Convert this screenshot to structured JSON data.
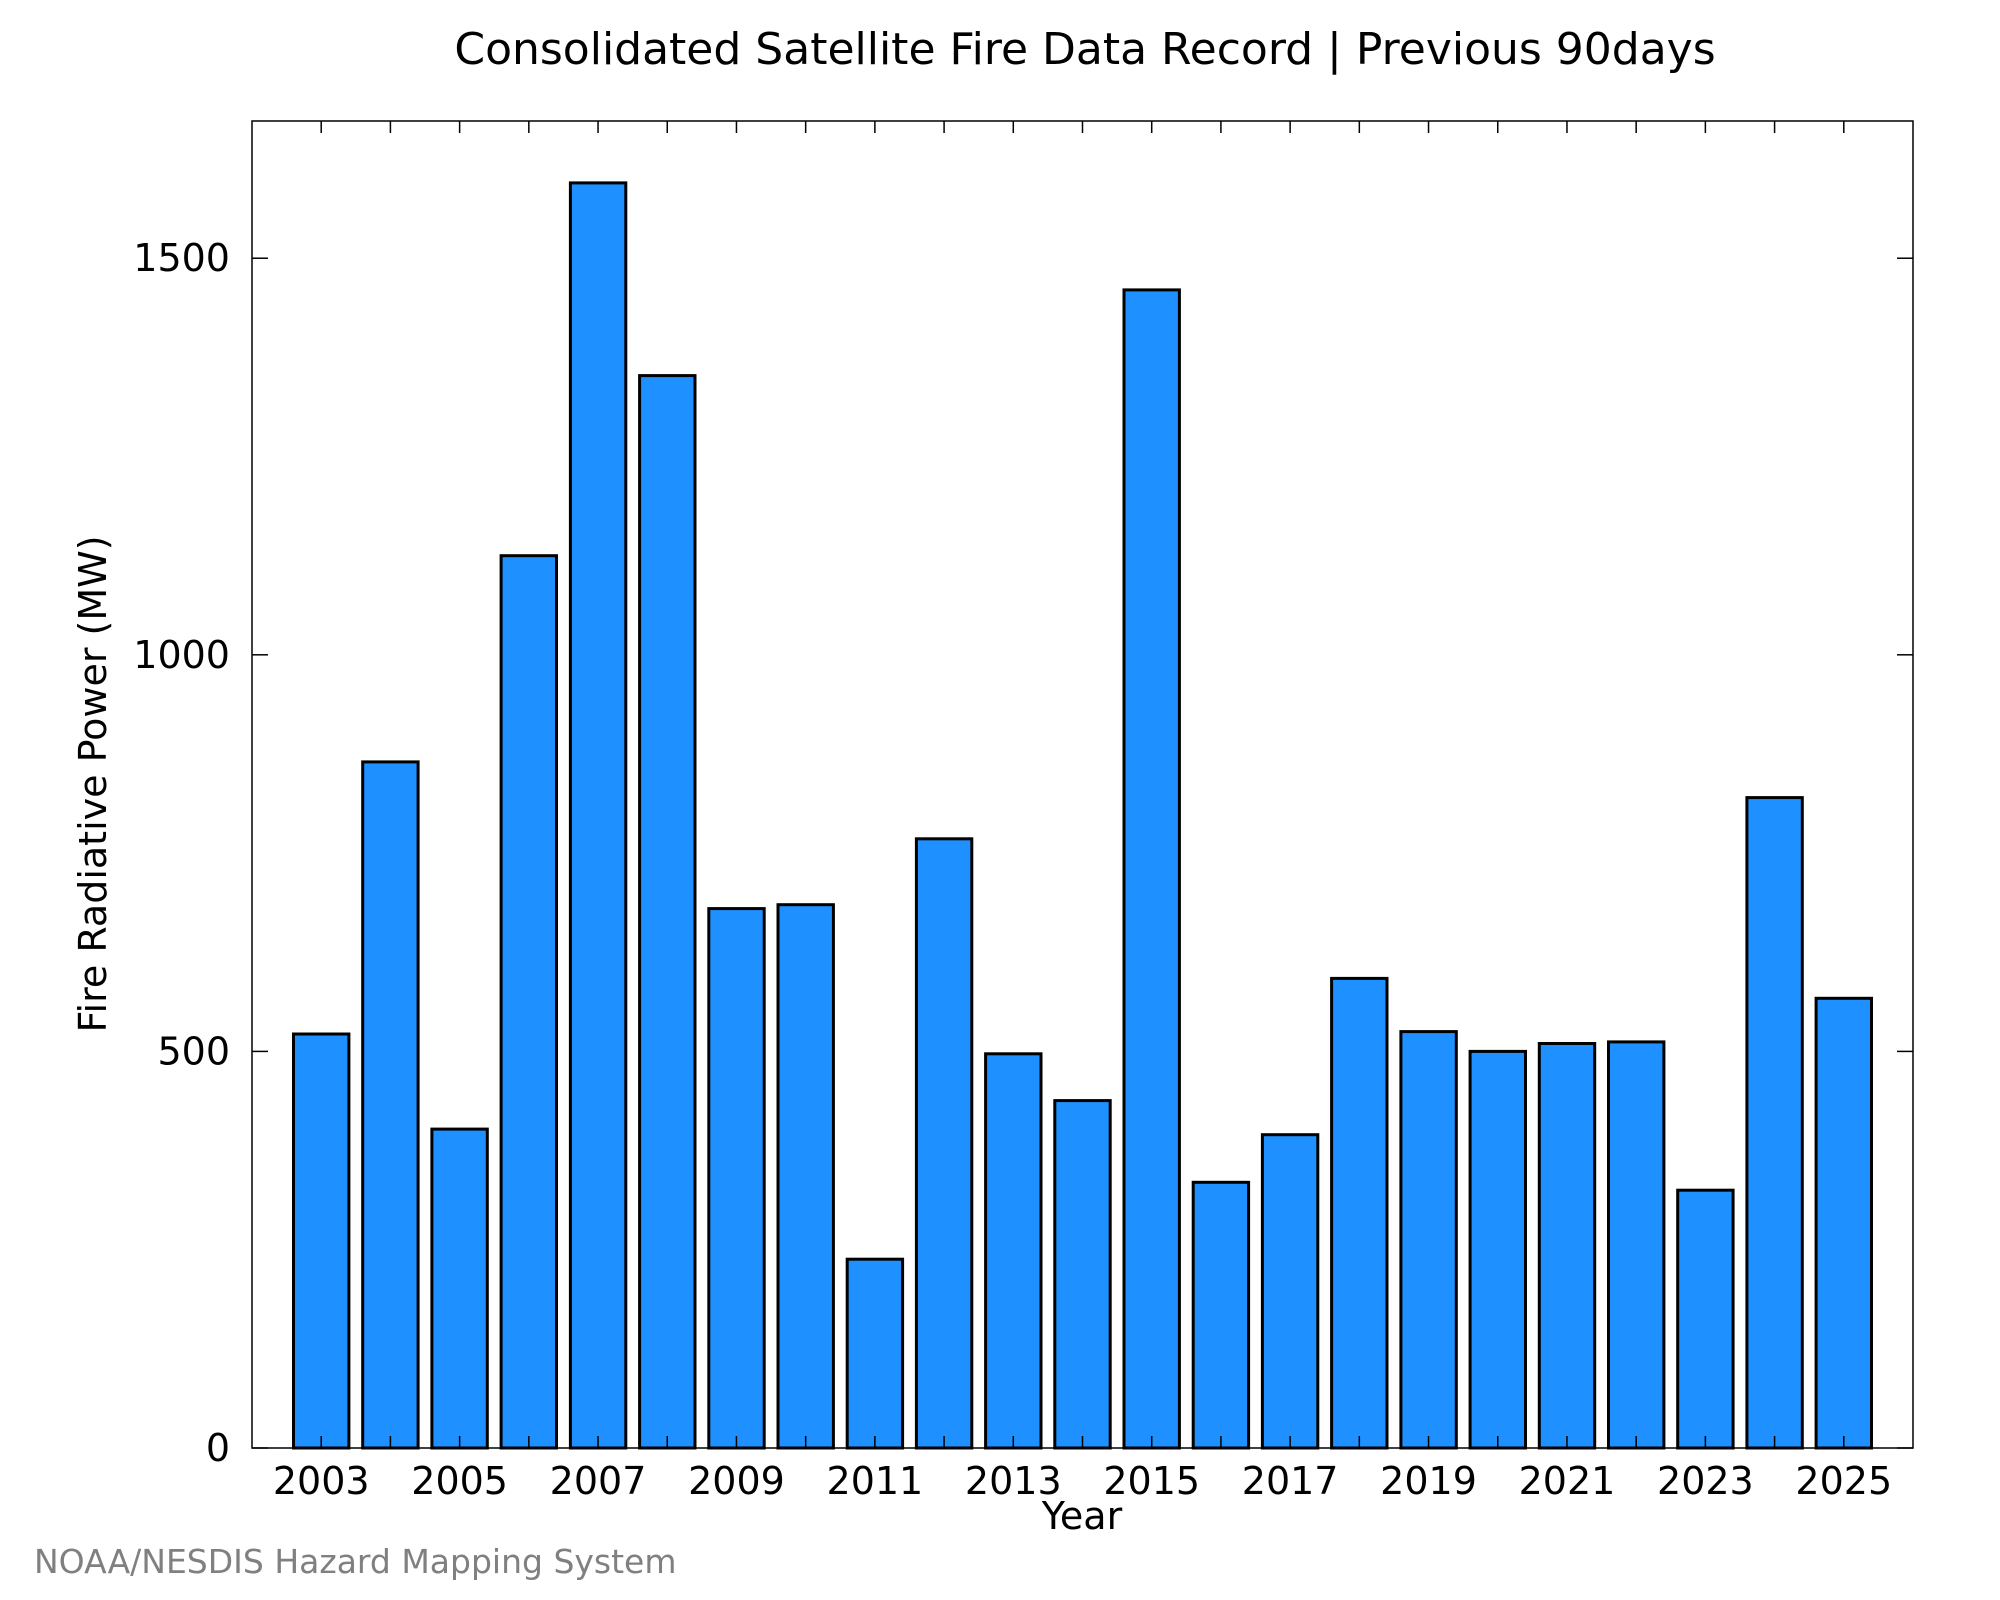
{
  "chart_data": {
    "type": "bar",
    "title": "Consolidated Satellite Fire Data Record | Previous 90days",
    "xlabel": "Year",
    "ylabel": "Fire Radiative Power (MW)",
    "categories": [
      2003,
      2004,
      2005,
      2006,
      2007,
      2008,
      2009,
      2010,
      2011,
      2012,
      2013,
      2014,
      2015,
      2016,
      2017,
      2018,
      2019,
      2020,
      2021,
      2022,
      2023,
      2024,
      2025
    ],
    "values": [
      522,
      865,
      402,
      1125,
      1595,
      1352,
      680,
      685,
      238,
      768,
      497,
      438,
      1460,
      335,
      395,
      592,
      525,
      500,
      510,
      512,
      325,
      820,
      567
    ],
    "x_tick_labels": [
      "2003",
      "2005",
      "2007",
      "2009",
      "2011",
      "2013",
      "2015",
      "2017",
      "2019",
      "2021",
      "2023",
      "2025"
    ],
    "y_ticks": [
      0,
      500,
      1000,
      1500
    ],
    "ylim": [
      0,
      1673
    ],
    "xlim": [
      2002,
      2026
    ],
    "bar_color": "#1e90ff",
    "grid": false,
    "legend": "none"
  },
  "credit": "NOAA/NESDIS Hazard Mapping System"
}
